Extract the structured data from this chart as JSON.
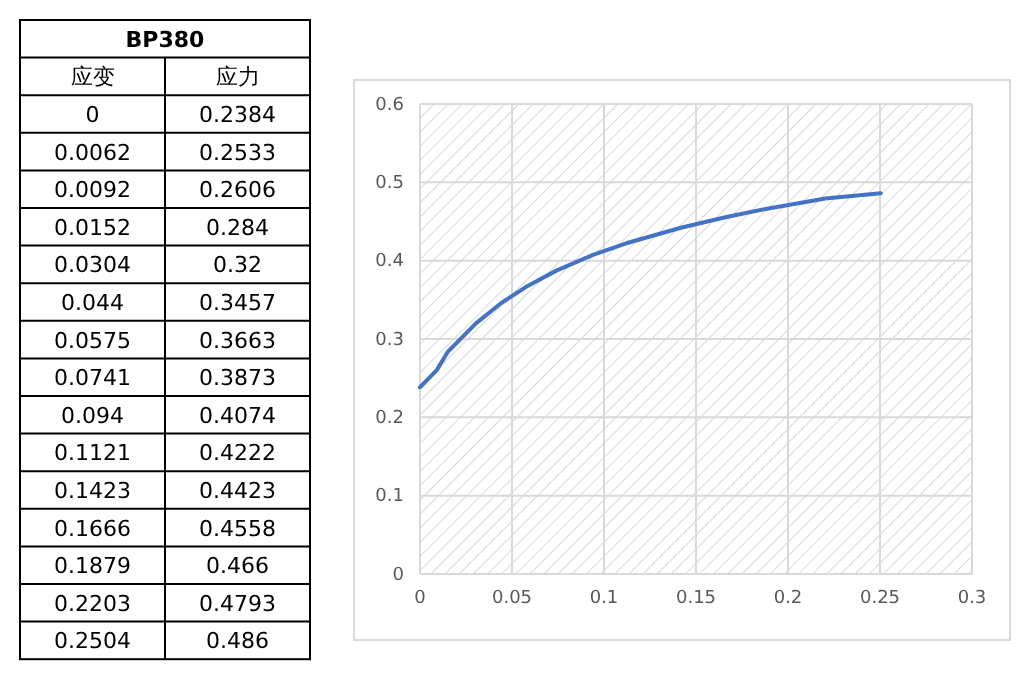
{
  "chart_data": {
    "type": "line",
    "title": "BP380",
    "annotations": [
      "应变",
      "应力",
      "0",
      "0.2384",
      "0.0062",
      "0.2533",
      "0.0092",
      "0.2606",
      "0.0152",
      "0.284",
      "0.0304",
      "0.32",
      "0.044",
      "0.3457",
      "0.0575",
      "0.3663",
      "0.0741",
      "0.3873",
      "0.094",
      "0.4074",
      "0.1121",
      "0.4222",
      "0.1423",
      "0.4423",
      "0.1666",
      "0.4558",
      "0.1879",
      "0.466",
      "0.2203",
      "0.4793",
      "0.2504",
      "0.486"
    ],
    "x": [
      0,
      0.0062,
      0.0092,
      0.0152,
      0.0304,
      0.044,
      0.0575,
      0.0741,
      0.094,
      0.1121,
      0.1423,
      0.1666,
      0.1879,
      0.2203,
      0.2504
    ],
    "series": [
      {
        "color": "#4472c4",
        "values": [
          0.2384,
          0.2533,
          0.2606,
          0.284,
          0.32,
          0.3457,
          0.3663,
          0.3873,
          0.4074,
          0.4222,
          0.4423,
          0.4558,
          0.466,
          0.4793,
          0.486
        ]
      }
    ],
    "xlim": [
      0,
      0.3
    ],
    "xticks": [
      0,
      0.05,
      0.1,
      0.15,
      0.2,
      0.25,
      0.3
    ],
    "ylim": [
      0,
      0.6
    ],
    "yticks": [
      0,
      0.1,
      0.2,
      0.3,
      0.4,
      0.5,
      0.6
    ],
    "grid": true,
    "marker": "none",
    "line_style": "solid"
  }
}
